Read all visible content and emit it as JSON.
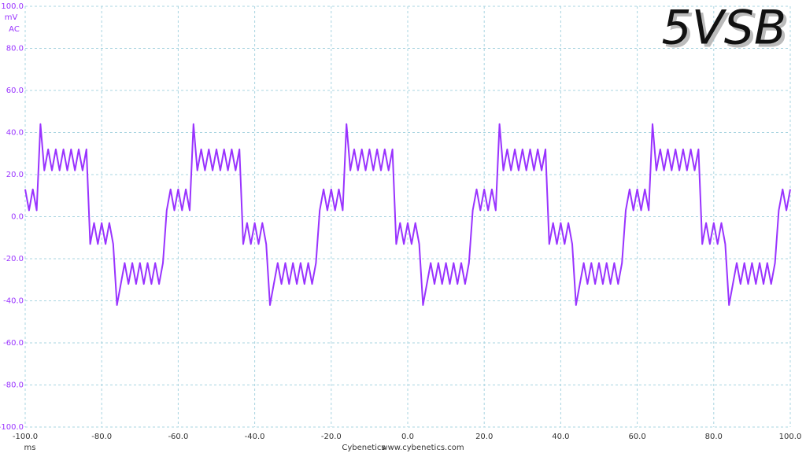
{
  "chart_data": {
    "type": "line",
    "title": "5VSB",
    "y_unit": "mV",
    "y_coupling": "AC",
    "x_unit": "ms",
    "footer_name": "Cybenetics",
    "footer_url": "www.cybenetics.com",
    "x": [
      -100,
      -99,
      -98,
      -97,
      -96,
      -95,
      -94,
      -93,
      -92,
      -91,
      -90,
      -89,
      -88,
      -87,
      -86,
      -85,
      -84,
      -83,
      -82,
      -81,
      -80,
      -79,
      -78,
      -77,
      -76,
      -75,
      -74,
      -73,
      -72,
      -71,
      -70,
      -69,
      -68,
      -67,
      -66,
      -65,
      -64,
      -63,
      -62,
      -61,
      -60,
      -59,
      -58,
      -57,
      -56,
      -55,
      -54,
      -53,
      -52,
      -51,
      -50,
      -49,
      -48,
      -47,
      -46,
      -45,
      -44,
      -43,
      -42,
      -41,
      -40,
      -39,
      -38,
      -37,
      -36,
      -35,
      -34,
      -33,
      -32,
      -31,
      -30,
      -29,
      -28,
      -27,
      -26,
      -25,
      -24,
      -23,
      -22,
      -21,
      -20,
      -19,
      -18,
      -17,
      -16,
      -15,
      -14,
      -13,
      -12,
      -11,
      -10,
      -9,
      -8,
      -7,
      -6,
      -5,
      -4,
      -3,
      -2,
      -1,
      0,
      1,
      2,
      3,
      4,
      5,
      6,
      7,
      8,
      9,
      10,
      11,
      12,
      13,
      14,
      15,
      16,
      17,
      18,
      19,
      20,
      21,
      22,
      23,
      24,
      25,
      26,
      27,
      28,
      29,
      30,
      31,
      32,
      33,
      34,
      35,
      36,
      37,
      38,
      39,
      40,
      41,
      42,
      43,
      44,
      45,
      46,
      47,
      48,
      49,
      50,
      51,
      52,
      53,
      54,
      55,
      56,
      57,
      58,
      59,
      60,
      61,
      62,
      63,
      64,
      65,
      66,
      67,
      68,
      69,
      70,
      71,
      72,
      73,
      74,
      75,
      76,
      77,
      78,
      79,
      80,
      81,
      82,
      83,
      84,
      85,
      86,
      87,
      88,
      89,
      90,
      91,
      92,
      93,
      94,
      95,
      96,
      97,
      98,
      99,
      100
    ],
    "series": [
      {
        "color": "#9933ff",
        "values": [
          13,
          3,
          13,
          3,
          44,
          22,
          32,
          22,
          32,
          22,
          32,
          22,
          32,
          22,
          32,
          22,
          32,
          -13,
          -3,
          -13,
          -3,
          -13,
          -3,
          -13,
          -42,
          -32,
          -22,
          -32,
          -22,
          -32,
          -22,
          -32,
          -22,
          -32,
          -22,
          -32,
          -22,
          3,
          13,
          3,
          13,
          3,
          13,
          3,
          44,
          22,
          32,
          22,
          32,
          22,
          32,
          22,
          32,
          22,
          32,
          22,
          32,
          -13,
          -3,
          -13,
          -3,
          -13,
          -3,
          -13,
          -42,
          -32,
          -22,
          -32,
          -22,
          -32,
          -22,
          -32,
          -22,
          -32,
          -22,
          -32,
          -22,
          3,
          13,
          3,
          13,
          3,
          13,
          3,
          44,
          22,
          32,
          22,
          32,
          22,
          32,
          22,
          32,
          22,
          32,
          22,
          32,
          -13,
          -3,
          -13,
          -3,
          -13,
          -3,
          -13,
          -42,
          -32,
          -22,
          -32,
          -22,
          -32,
          -22,
          -32,
          -22,
          -32,
          -22,
          -32,
          -22,
          3,
          13,
          3,
          13,
          3,
          13,
          3,
          44,
          22,
          32,
          22,
          32,
          22,
          32,
          22,
          32,
          22,
          32,
          22,
          32,
          -13,
          -3,
          -13,
          -3,
          -13,
          -3,
          -13,
          -42,
          -32,
          -22,
          -32,
          -22,
          -32,
          -22,
          -32,
          -22,
          -32,
          -22,
          -32,
          -22,
          3,
          13,
          3,
          13,
          3,
          13,
          3,
          44,
          22,
          32,
          22,
          32,
          22,
          32,
          22,
          32,
          22,
          32,
          22,
          32,
          -13,
          -3,
          -13,
          -3,
          -13,
          -3,
          -13,
          -42,
          -32,
          -22,
          -32,
          -22,
          -32,
          -22,
          -32,
          -22,
          -32,
          -22,
          -32,
          -22,
          3,
          13,
          3,
          13
        ]
      }
    ],
    "xlim": [
      -100,
      100
    ],
    "ylim": [
      -100,
      100
    ],
    "xticks": [
      {
        "value": -100,
        "label": "-100.0"
      },
      {
        "value": -80,
        "label": "-80.0"
      },
      {
        "value": -60,
        "label": "-60.0"
      },
      {
        "value": -40,
        "label": "-40.0"
      },
      {
        "value": -20,
        "label": "-20.0"
      },
      {
        "value": 0,
        "label": "0.0"
      },
      {
        "value": 20,
        "label": "20.0"
      },
      {
        "value": 40,
        "label": "40.0"
      },
      {
        "value": 60,
        "label": "60.0"
      },
      {
        "value": 80,
        "label": "80.0"
      },
      {
        "value": 100,
        "label": "100.0"
      }
    ],
    "yticks": [
      {
        "value": -100,
        "label": "-100.0"
      },
      {
        "value": -80,
        "label": "-80.0"
      },
      {
        "value": -60,
        "label": "-60.0"
      },
      {
        "value": -40,
        "label": "-40.0"
      },
      {
        "value": -20,
        "label": "-20.0"
      },
      {
        "value": 0,
        "label": "0.0"
      },
      {
        "value": 20,
        "label": "20.0"
      },
      {
        "value": 40,
        "label": "40.0"
      },
      {
        "value": 60,
        "label": "60.0"
      },
      {
        "value": 80,
        "label": "80.0"
      },
      {
        "value": 100,
        "label": "100.0"
      }
    ],
    "grid": true
  }
}
